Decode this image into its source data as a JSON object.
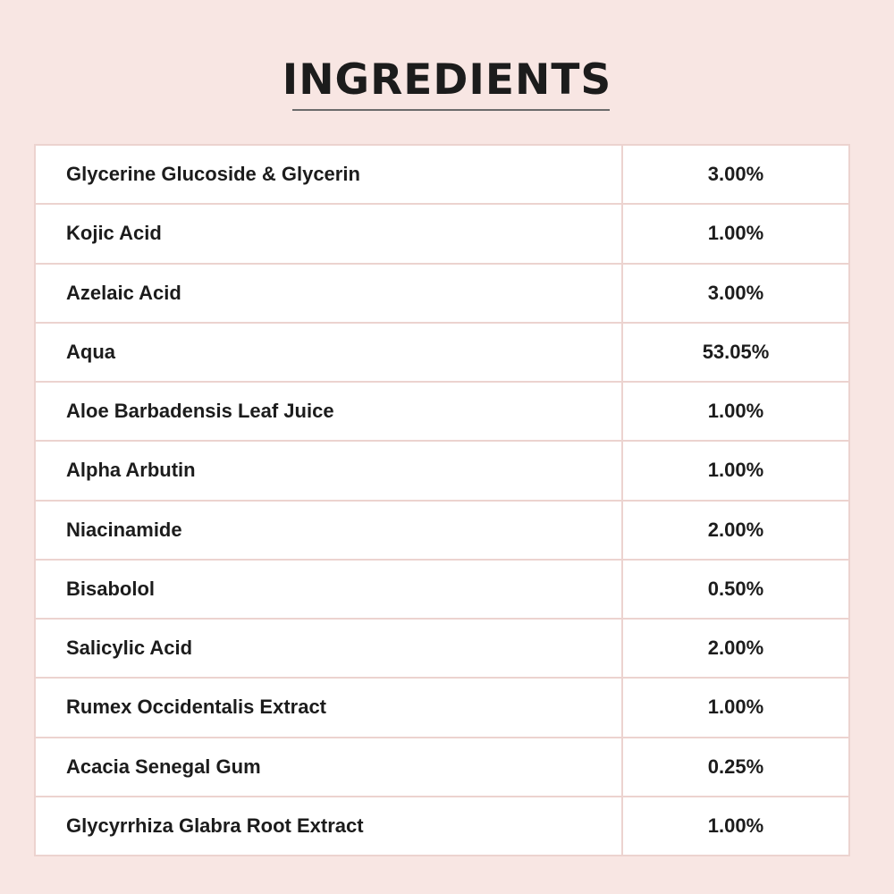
{
  "title": "INGREDIENTS",
  "ingredients": [
    {
      "name": "Glycerine Glucoside & Glycerin",
      "percent": "3.00%"
    },
    {
      "name": "Kojic Acid",
      "percent": "1.00%"
    },
    {
      "name": "Azelaic Acid",
      "percent": "3.00%"
    },
    {
      "name": "Aqua",
      "percent": "53.05%"
    },
    {
      "name": "Aloe Barbadensis Leaf Juice",
      "percent": "1.00%"
    },
    {
      "name": "Alpha Arbutin",
      "percent": "1.00%"
    },
    {
      "name": "Niacinamide",
      "percent": "2.00%"
    },
    {
      "name": "Bisabolol",
      "percent": "0.50%"
    },
    {
      "name": "Salicylic Acid",
      "percent": "2.00%"
    },
    {
      "name": "Rumex Occidentalis Extract",
      "percent": "1.00%"
    },
    {
      "name": "Acacia Senegal Gum",
      "percent": "0.25%"
    },
    {
      "name": "Glycyrrhiza Glabra Root Extract",
      "percent": "1.00%"
    }
  ],
  "colors": {
    "background": "#f8e6e3",
    "border": "#ecd3cf",
    "text": "#1c1c1c"
  }
}
